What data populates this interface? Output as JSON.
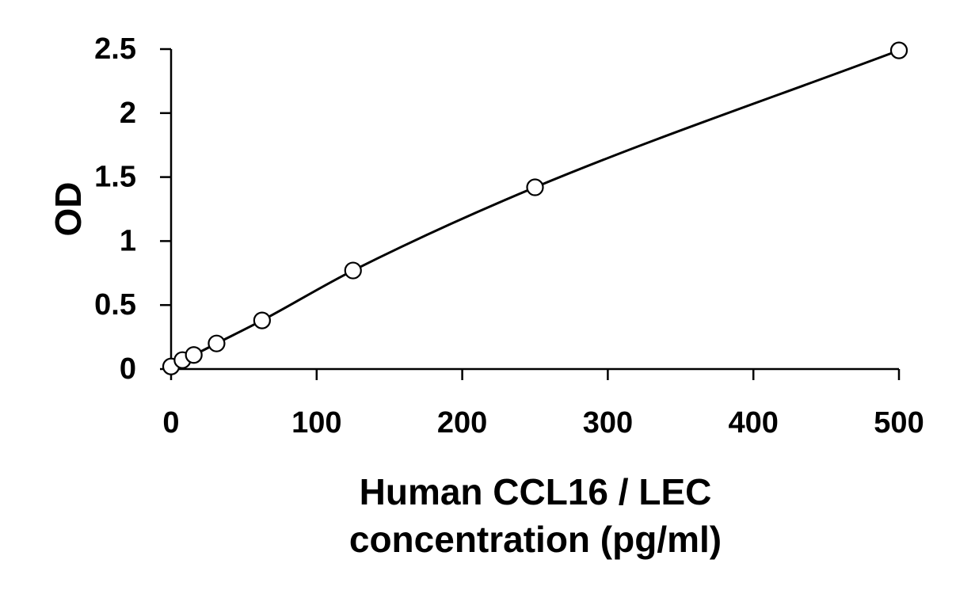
{
  "chart_data": {
    "type": "scatter",
    "title": "",
    "xlabel": [
      "Human CCL16 / LEC",
      "concentration (pg/ml)"
    ],
    "ylabel": "OD",
    "xlim": [
      0,
      500
    ],
    "ylim": [
      0,
      2.5
    ],
    "x_ticks": [
      "0",
      "100",
      "200",
      "300",
      "400",
      "500"
    ],
    "y_ticks": [
      "0",
      "0.5",
      "1",
      "1.5",
      "2",
      "2.5"
    ],
    "grid": false,
    "legend": "none",
    "series": [
      {
        "marker": "open-circle",
        "fit": "smooth-curve",
        "points": [
          {
            "x": 0,
            "y": 0.02
          },
          {
            "x": 7.8,
            "y": 0.07
          },
          {
            "x": 15.6,
            "y": 0.11
          },
          {
            "x": 31.25,
            "y": 0.2
          },
          {
            "x": 62.5,
            "y": 0.38
          },
          {
            "x": 125,
            "y": 0.77
          },
          {
            "x": 250,
            "y": 1.42
          },
          {
            "x": 500,
            "y": 2.49
          }
        ]
      }
    ],
    "colors": {
      "line": "#000000",
      "marker_fill": "#ffffff",
      "text": "#000000"
    }
  }
}
